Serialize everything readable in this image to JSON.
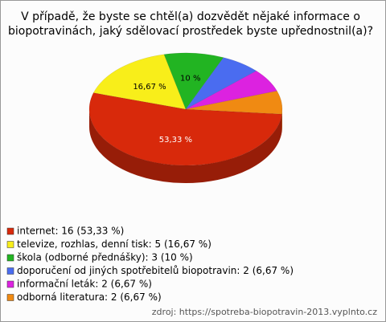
{
  "chart_data": {
    "type": "pie",
    "title": "V případě, že byste se chtěl(a) dozvědět nějaké informace o biopotravinách, jaký sdělovací prostředek byste upřednostnil(a)?",
    "categories": [
      "internet: 16 (53,33 %)",
      "televize, rozhlas, denní tisk: 5 (16,67 %)",
      "škola (odborné přednášky): 3 (10 %)",
      "doporučení od jiných spotřebitelů biopotravin: 2 (6,67 %)",
      "informační leták: 2 (6,67 %)",
      "odborná literatura: 2 (6,67 %)"
    ],
    "values": [
      53.33,
      16.67,
      10,
      6.67,
      6.67,
      6.67
    ],
    "value_labels": [
      "53,33 %",
      "16,67 %",
      "10 %",
      null,
      null,
      null
    ],
    "colors": [
      "#d8290b",
      "#f8ee1a",
      "#22b422",
      "#4a6cf0",
      "#dc22e0",
      "#f08a12"
    ],
    "source": "zdroj: https://spotreba-biopotravin-2013.vyplnto.cz"
  }
}
